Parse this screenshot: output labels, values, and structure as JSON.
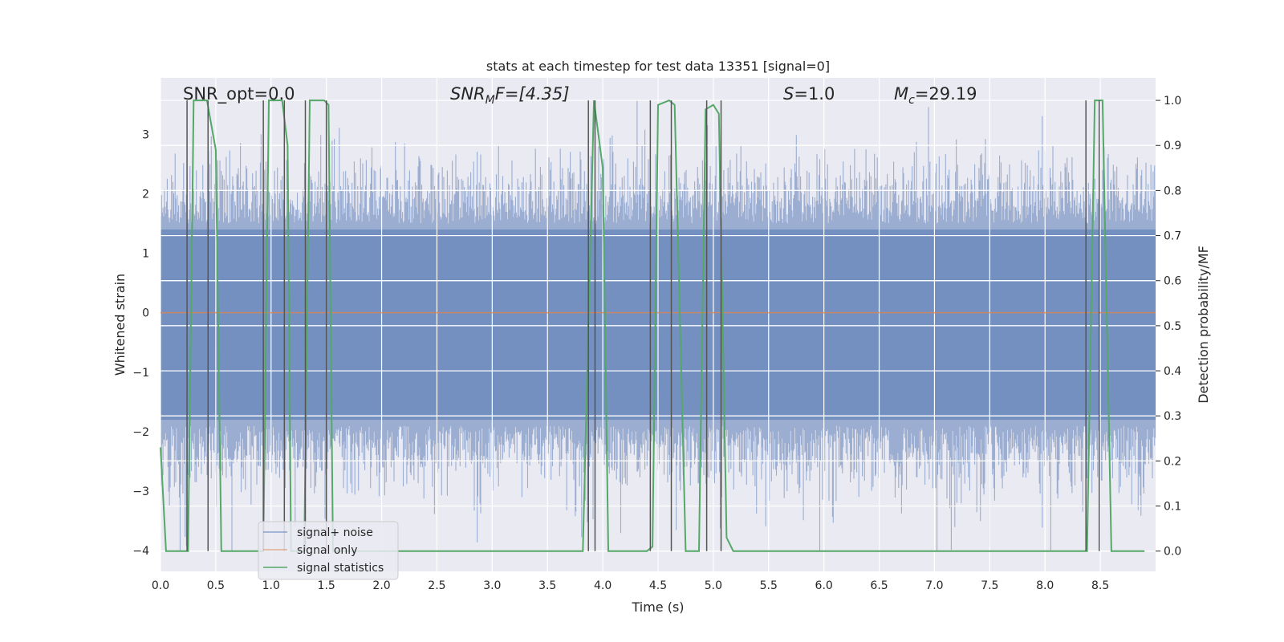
{
  "chart_data": {
    "type": "line",
    "title": "stats at each timestep for test data 13351 [signal=0]",
    "xlabel": "Time (s)",
    "ylabel_left": "Whitened strain",
    "ylabel_right": "Detection probability/MF",
    "xlim": [
      0.0,
      9.0
    ],
    "ylim_left": [
      -4.35,
      3.95
    ],
    "ylim_right": [
      -0.045,
      1.05
    ],
    "x_ticks": [
      "0.0",
      "0.5",
      "1.0",
      "1.5",
      "2.0",
      "2.5",
      "3.0",
      "3.5",
      "4.0",
      "4.5",
      "5.0",
      "5.5",
      "6.0",
      "6.5",
      "7.0",
      "7.5",
      "8.0",
      "8.5"
    ],
    "y_left_ticks": [
      "3",
      "2",
      "1",
      "0",
      "−1",
      "−2",
      "−3",
      "−4"
    ],
    "y_right_ticks": [
      "1.0",
      "0.9",
      "0.8",
      "0.7",
      "0.6",
      "0.5",
      "0.4",
      "0.3",
      "0.2",
      "0.1",
      "0.0"
    ],
    "grid": true,
    "legend_position": "lower-left",
    "annotations": {
      "snr_opt": "SNR_opt=0.0",
      "snr_mf_main": "SNR",
      "snr_mf_sub": "M",
      "snr_mf_rest": "F=[4.35]",
      "s_main": "S",
      "s_rest": "=1.0",
      "mc_main": "M",
      "mc_sub": "c",
      "mc_rest": "=29.19"
    },
    "series": [
      {
        "name": "signal+ noise",
        "color": "#4c72b0",
        "kind": "noise",
        "amplitude_core": [
          -1.8,
          1.4
        ],
        "amplitude_extremes": [
          -4.0,
          3.6
        ]
      },
      {
        "name": "signal only",
        "color": "#dd8452",
        "x": [
          0.0,
          9.0
        ],
        "y": [
          0.0,
          0.0
        ]
      },
      {
        "name": "signal statistics",
        "color": "#55a868",
        "axis": "right",
        "x": [
          0.0,
          0.05,
          0.25,
          0.3,
          0.42,
          0.5,
          0.55,
          0.93,
          0.98,
          1.1,
          1.15,
          1.18,
          1.3,
          1.35,
          1.48,
          1.52,
          1.56,
          3.82,
          3.92,
          4.0,
          4.05,
          4.4,
          4.45,
          4.5,
          4.6,
          4.65,
          4.75,
          4.87,
          4.93,
          5.0,
          5.05,
          5.12,
          5.18,
          8.3,
          8.38,
          8.45,
          8.52,
          8.6,
          8.9
        ],
        "y": [
          0.23,
          0.0,
          0.0,
          1.0,
          1.0,
          0.89,
          0.0,
          0.0,
          1.0,
          1.0,
          0.9,
          0.0,
          0.0,
          1.0,
          1.0,
          0.99,
          0.0,
          0.0,
          1.0,
          0.85,
          0.0,
          0.0,
          0.01,
          0.99,
          1.0,
          0.99,
          0.0,
          0.0,
          0.98,
          0.99,
          0.97,
          0.03,
          0.0,
          0.0,
          0.0,
          1.0,
          1.0,
          0.0,
          0.0
        ]
      }
    ],
    "vertical_lines": {
      "color": "#555555",
      "x": [
        0.24,
        0.43,
        0.93,
        1.12,
        1.31,
        1.5,
        3.87,
        3.93,
        4.43,
        4.62,
        4.94,
        5.07,
        8.37,
        8.49
      ]
    }
  }
}
